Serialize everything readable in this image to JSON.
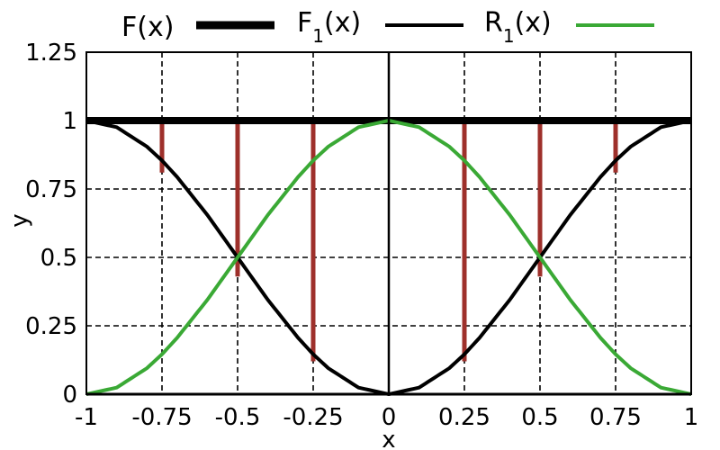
{
  "chart_data": {
    "type": "line",
    "xlabel": "x",
    "ylabel": "y",
    "xlim": [
      -1,
      1
    ],
    "ylim": [
      0,
      1.25
    ],
    "x_ticks": [
      -1,
      -0.75,
      -0.5,
      -0.25,
      0,
      0.25,
      0.5,
      0.75,
      1
    ],
    "x_tick_labels": [
      "-1",
      "-0.75",
      "-0.5",
      "-0.25",
      "0",
      "0.25",
      "0.5",
      "0.75",
      "1"
    ],
    "y_ticks": [
      0,
      0.25,
      0.5,
      0.75,
      1,
      1.25
    ],
    "y_tick_labels": [
      "0",
      "0.25",
      "0.5",
      "0.75",
      "1",
      "1.25"
    ],
    "grid": true,
    "legend_position": "top",
    "series": [
      {
        "name": "F(x)",
        "color": "#000000",
        "x": [
          -1,
          1
        ],
        "y": [
          1,
          1
        ]
      },
      {
        "name": "F1(x)",
        "color": "#000000",
        "x": [
          -1,
          -0.9,
          -0.8,
          -0.75,
          -0.7,
          -0.6,
          -0.5,
          -0.4,
          -0.3,
          -0.25,
          -0.2,
          -0.1,
          0,
          0.1,
          0.2,
          0.25,
          0.3,
          0.4,
          0.5,
          0.6,
          0.7,
          0.75,
          0.8,
          0.9,
          1
        ],
        "y": [
          1,
          0.976,
          0.905,
          0.854,
          0.794,
          0.655,
          0.5,
          0.345,
          0.206,
          0.146,
          0.095,
          0.024,
          0,
          0.024,
          0.095,
          0.146,
          0.206,
          0.345,
          0.5,
          0.655,
          0.794,
          0.854,
          0.905,
          0.976,
          1
        ]
      },
      {
        "name": "R1(x)",
        "color": "#3aa935",
        "x": [
          -1,
          -0.9,
          -0.8,
          -0.75,
          -0.7,
          -0.6,
          -0.5,
          -0.4,
          -0.3,
          -0.25,
          -0.2,
          -0.1,
          0,
          0.1,
          0.2,
          0.25,
          0.3,
          0.4,
          0.5,
          0.6,
          0.7,
          0.75,
          0.8,
          0.9,
          1
        ],
        "y": [
          0,
          0.024,
          0.095,
          0.146,
          0.206,
          0.345,
          0.5,
          0.655,
          0.794,
          0.854,
          0.905,
          0.976,
          1,
          0.976,
          0.905,
          0.854,
          0.794,
          0.655,
          0.5,
          0.345,
          0.206,
          0.146,
          0.095,
          0.024,
          0
        ]
      }
    ],
    "vertical_bars": {
      "color": "#9e302b",
      "segments": [
        {
          "x": -0.75,
          "y0": 0.81,
          "y1": 1
        },
        {
          "x": -0.5,
          "y0": 0.43,
          "y1": 1
        },
        {
          "x": -0.25,
          "y0": 0.12,
          "y1": 1
        },
        {
          "x": 0.25,
          "y0": 0.12,
          "y1": 1
        },
        {
          "x": 0.5,
          "y0": 0.43,
          "y1": 1
        },
        {
          "x": 0.75,
          "y0": 0.81,
          "y1": 1
        }
      ]
    }
  },
  "legend": {
    "items": [
      {
        "label_main": "F",
        "label_sub": "",
        "label_tail": "(x)"
      },
      {
        "label_main": "F",
        "label_sub": "1",
        "label_tail": "(x)"
      },
      {
        "label_main": "R",
        "label_sub": "1",
        "label_tail": "(x)"
      }
    ]
  }
}
